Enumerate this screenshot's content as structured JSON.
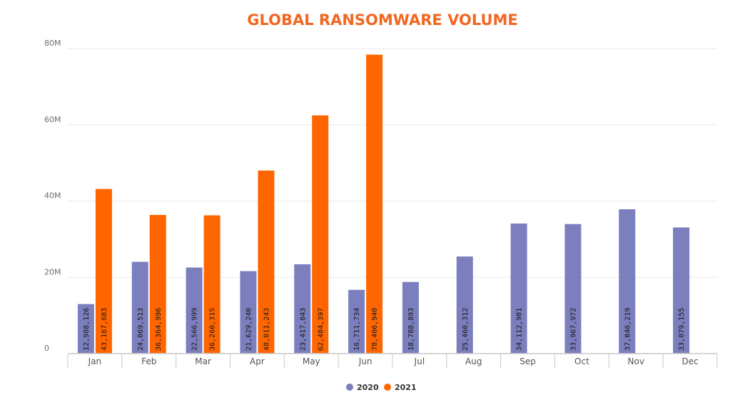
{
  "colors": {
    "title": "#f26722",
    "series_2020": "#7b7fbd",
    "series_2021": "#ff6600",
    "grid": "#e8e8e8",
    "axis": "#c8c8c8"
  },
  "chart_data": {
    "type": "bar",
    "title": "GLOBAL RANSOMWARE VOLUME",
    "xlabel": "",
    "ylabel": "",
    "ylim": [
      0,
      80000000
    ],
    "yticks": [
      {
        "value": 0,
        "label": "0"
      },
      {
        "value": 20000000,
        "label": "20M"
      },
      {
        "value": 40000000,
        "label": "40M"
      },
      {
        "value": 60000000,
        "label": "60M"
      },
      {
        "value": 80000000,
        "label": "80M"
      }
    ],
    "grid": true,
    "legend_position": "bottom",
    "categories": [
      "Jan",
      "Feb",
      "Mar",
      "Apr",
      "May",
      "Jun",
      "Jul",
      "Aug",
      "Sep",
      "Oct",
      "Nov",
      "Dec"
    ],
    "series": [
      {
        "name": "2020",
        "color": "#7b7fbd",
        "values": [
          12988126,
          24069513,
          22566999,
          21629240,
          23417843,
          16711734,
          18788893,
          25460312,
          34112981,
          33967972,
          37846219,
          33079155
        ],
        "labels": [
          "12,988,126",
          "24,069,513",
          "22,566,999",
          "21,629,240",
          "23,417,843",
          "16,711,734",
          "18,788,893",
          "25,460,312",
          "34,112,981",
          "33,967,972",
          "37,846,219",
          "33,079,155"
        ]
      },
      {
        "name": "2021",
        "color": "#ff6600",
        "values": [
          43167683,
          36364996,
          36260315,
          48011243,
          62484397,
          78406940,
          null,
          null,
          null,
          null,
          null,
          null
        ],
        "labels": [
          "43,167,683",
          "36,364,996",
          "36,260,315",
          "48,011,243",
          "62,484,397",
          "78,406,940",
          null,
          null,
          null,
          null,
          null,
          null
        ]
      }
    ]
  }
}
